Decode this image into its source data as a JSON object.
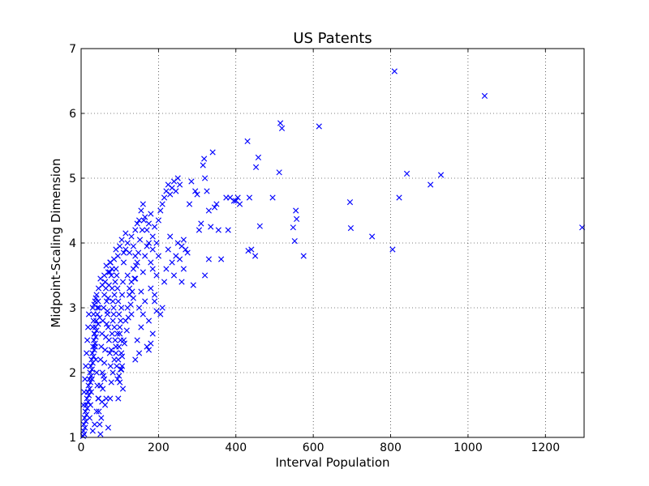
{
  "chart_data": {
    "type": "scatter",
    "title": "US Patents",
    "xlabel": "Interval Population",
    "ylabel": "Midpoint-Scaling Dimension",
    "xlim": [
      0,
      1300
    ],
    "ylim": [
      1,
      7
    ],
    "xticks": [
      "0",
      "200",
      "400",
      "600",
      "800",
      "1000",
      "1200"
    ],
    "yticks": [
      "1",
      "2",
      "3",
      "4",
      "5",
      "6",
      "7"
    ],
    "xtick_values": [
      0,
      200,
      400,
      600,
      800,
      1000,
      1200
    ],
    "ytick_values": [
      1,
      2,
      3,
      4,
      5,
      6,
      7
    ],
    "grid": true,
    "marker": "x",
    "series_color": "#0000ff",
    "points": [
      [
        5,
        1.02
      ],
      [
        6,
        1.1
      ],
      [
        7,
        1.2
      ],
      [
        8,
        1.05
      ],
      [
        9,
        1.3
      ],
      [
        10,
        1.15
      ],
      [
        11,
        1.4
      ],
      [
        12,
        1.25
      ],
      [
        13,
        1.5
      ],
      [
        14,
        1.35
      ],
      [
        15,
        1.6
      ],
      [
        16,
        1.45
      ],
      [
        17,
        1.7
      ],
      [
        18,
        1.55
      ],
      [
        19,
        1.8
      ],
      [
        20,
        1.65
      ],
      [
        21,
        1.9
      ],
      [
        22,
        1.75
      ],
      [
        23,
        2.0
      ],
      [
        24,
        1.85
      ],
      [
        25,
        2.1
      ],
      [
        26,
        1.95
      ],
      [
        27,
        2.2
      ],
      [
        28,
        2.05
      ],
      [
        29,
        2.3
      ],
      [
        30,
        2.15
      ],
      [
        31,
        2.4
      ],
      [
        32,
        2.25
      ],
      [
        33,
        2.5
      ],
      [
        34,
        2.35
      ],
      [
        35,
        2.6
      ],
      [
        36,
        2.45
      ],
      [
        37,
        2.7
      ],
      [
        38,
        2.55
      ],
      [
        39,
        2.8
      ],
      [
        40,
        2.65
      ],
      [
        42,
        2.9
      ],
      [
        44,
        2.75
      ],
      [
        46,
        3.0
      ],
      [
        48,
        2.85
      ],
      [
        6,
        1.5
      ],
      [
        8,
        1.7
      ],
      [
        10,
        1.9
      ],
      [
        12,
        2.1
      ],
      [
        14,
        2.3
      ],
      [
        16,
        2.5
      ],
      [
        18,
        2.7
      ],
      [
        20,
        2.9
      ],
      [
        22,
        1.3
      ],
      [
        24,
        1.5
      ],
      [
        26,
        1.7
      ],
      [
        28,
        1.9
      ],
      [
        30,
        2.7
      ],
      [
        32,
        2.9
      ],
      [
        34,
        3.05
      ],
      [
        36,
        3.1
      ],
      [
        38,
        3.15
      ],
      [
        40,
        3.2
      ],
      [
        42,
        3.0
      ],
      [
        44,
        3.1
      ],
      [
        30,
        1.1
      ],
      [
        35,
        1.2
      ],
      [
        40,
        1.4
      ],
      [
        45,
        1.6
      ],
      [
        50,
        1.8
      ],
      [
        55,
        2.0
      ],
      [
        60,
        1.9
      ],
      [
        65,
        1.6
      ],
      [
        70,
        1.15
      ],
      [
        62,
        1.5
      ],
      [
        50,
        2.2
      ],
      [
        52,
        2.4
      ],
      [
        54,
        2.6
      ],
      [
        56,
        2.8
      ],
      [
        58,
        3.0
      ],
      [
        60,
        3.2
      ],
      [
        62,
        3.4
      ],
      [
        64,
        3.3
      ],
      [
        66,
        3.1
      ],
      [
        68,
        2.9
      ],
      [
        70,
        2.7
      ],
      [
        72,
        2.5
      ],
      [
        74,
        2.3
      ],
      [
        76,
        2.1
      ],
      [
        78,
        2.35
      ],
      [
        80,
        2.6
      ],
      [
        82,
        2.8
      ],
      [
        84,
        3.0
      ],
      [
        86,
        3.2
      ],
      [
        88,
        3.4
      ],
      [
        90,
        3.6
      ],
      [
        92,
        3.5
      ],
      [
        94,
        3.3
      ],
      [
        96,
        3.1
      ],
      [
        98,
        2.9
      ],
      [
        100,
        2.7
      ],
      [
        102,
        2.5
      ],
      [
        104,
        2.3
      ],
      [
        106,
        2.1
      ],
      [
        108,
        1.75
      ],
      [
        96,
        1.6
      ],
      [
        100,
        1.85
      ],
      [
        104,
        2.05
      ],
      [
        110,
        2.5
      ],
      [
        115,
        2.8
      ],
      [
        120,
        3.0
      ],
      [
        125,
        3.2
      ],
      [
        130,
        3.4
      ],
      [
        135,
        3.6
      ],
      [
        140,
        3.8
      ],
      [
        110,
        3.7
      ],
      [
        115,
        3.9
      ],
      [
        120,
        4.0
      ],
      [
        125,
        3.85
      ],
      [
        130,
        4.1
      ],
      [
        135,
        3.95
      ],
      [
        140,
        4.2
      ],
      [
        145,
        4.3
      ],
      [
        150,
        4.35
      ],
      [
        155,
        4.5
      ],
      [
        160,
        4.6
      ],
      [
        165,
        4.4
      ],
      [
        170,
        4.2
      ],
      [
        175,
        4.3
      ],
      [
        180,
        4.45
      ],
      [
        185,
        4.1
      ],
      [
        190,
        4.25
      ],
      [
        195,
        4.0
      ],
      [
        200,
        4.35
      ],
      [
        205,
        4.5
      ],
      [
        140,
        2.2
      ],
      [
        145,
        2.5
      ],
      [
        150,
        2.3
      ],
      [
        155,
        2.7
      ],
      [
        160,
        2.9
      ],
      [
        165,
        3.1
      ],
      [
        170,
        2.4
      ],
      [
        175,
        2.35
      ],
      [
        180,
        2.45
      ],
      [
        185,
        2.6
      ],
      [
        175,
        2.8
      ],
      [
        180,
        3.3
      ],
      [
        185,
        3.6
      ],
      [
        190,
        3.2
      ],
      [
        195,
        3.5
      ],
      [
        200,
        3.8
      ],
      [
        205,
        2.9
      ],
      [
        210,
        3.0
      ],
      [
        215,
        3.4
      ],
      [
        220,
        3.6
      ],
      [
        210,
        4.6
      ],
      [
        215,
        4.7
      ],
      [
        220,
        4.8
      ],
      [
        225,
        4.9
      ],
      [
        230,
        4.75
      ],
      [
        235,
        4.85
      ],
      [
        240,
        4.95
      ],
      [
        245,
        4.8
      ],
      [
        250,
        5.0
      ],
      [
        255,
        4.9
      ],
      [
        225,
        3.9
      ],
      [
        230,
        4.1
      ],
      [
        235,
        3.7
      ],
      [
        240,
        3.5
      ],
      [
        245,
        3.8
      ],
      [
        250,
        4.0
      ],
      [
        255,
        3.75
      ],
      [
        260,
        3.95
      ],
      [
        265,
        4.05
      ],
      [
        270,
        3.9
      ],
      [
        260,
        3.4
      ],
      [
        265,
        3.6
      ],
      [
        275,
        3.85
      ],
      [
        280,
        4.6
      ],
      [
        285,
        4.95
      ],
      [
        290,
        3.35
      ],
      [
        295,
        4.8
      ],
      [
        300,
        4.75
      ],
      [
        305,
        4.2
      ],
      [
        310,
        4.3
      ],
      [
        315,
        5.2
      ],
      [
        318,
        5.3
      ],
      [
        320,
        5.0
      ],
      [
        325,
        4.8
      ],
      [
        330,
        4.5
      ],
      [
        335,
        4.25
      ],
      [
        340,
        5.4
      ],
      [
        345,
        4.55
      ],
      [
        350,
        4.6
      ],
      [
        355,
        4.2
      ],
      [
        320,
        3.5
      ],
      [
        330,
        3.75
      ],
      [
        362,
        3.75
      ],
      [
        375,
        4.7
      ],
      [
        380,
        4.2
      ],
      [
        385,
        4.7
      ],
      [
        395,
        4.65
      ],
      [
        400,
        4.65
      ],
      [
        405,
        4.7
      ],
      [
        410,
        4.6
      ],
      [
        430,
        5.57
      ],
      [
        432,
        3.88
      ],
      [
        435,
        4.7
      ],
      [
        440,
        3.9
      ],
      [
        450,
        3.8
      ],
      [
        452,
        5.17
      ],
      [
        458,
        5.32
      ],
      [
        462,
        4.26
      ],
      [
        495,
        4.7
      ],
      [
        512,
        5.09
      ],
      [
        515,
        5.85
      ],
      [
        519,
        5.77
      ],
      [
        548,
        4.24
      ],
      [
        552,
        4.03
      ],
      [
        555,
        4.5
      ],
      [
        557,
        4.37
      ],
      [
        575,
        3.8
      ],
      [
        615,
        5.8
      ],
      [
        695,
        4.63
      ],
      [
        697,
        4.23
      ],
      [
        752,
        4.1
      ],
      [
        805,
        3.9
      ],
      [
        810,
        6.65
      ],
      [
        822,
        4.7
      ],
      [
        842,
        5.07
      ],
      [
        903,
        4.9
      ],
      [
        930,
        5.05
      ],
      [
        1043,
        6.27
      ],
      [
        1295,
        4.24
      ],
      [
        45,
        3.3
      ],
      [
        50,
        3.45
      ],
      [
        55,
        3.35
      ],
      [
        60,
        3.5
      ],
      [
        65,
        3.65
      ],
      [
        70,
        3.55
      ],
      [
        75,
        3.7
      ],
      [
        80,
        3.6
      ],
      [
        85,
        3.75
      ],
      [
        90,
        3.9
      ],
      [
        95,
        3.8
      ],
      [
        100,
        3.95
      ],
      [
        105,
        4.05
      ],
      [
        110,
        3.85
      ],
      [
        115,
        4.15
      ],
      [
        120,
        3.5
      ],
      [
        125,
        3.3
      ],
      [
        130,
        2.9
      ],
      [
        135,
        3.15
      ],
      [
        140,
        3.45
      ],
      [
        145,
        3.7
      ],
      [
        150,
        3.0
      ],
      [
        155,
        3.25
      ],
      [
        160,
        3.55
      ],
      [
        165,
        3.8
      ],
      [
        170,
        3.95
      ],
      [
        175,
        4.0
      ],
      [
        180,
        3.7
      ],
      [
        185,
        3.9
      ],
      [
        190,
        3.1
      ],
      [
        195,
        2.95
      ],
      [
        30,
        3.0
      ],
      [
        32,
        2.8
      ],
      [
        34,
        2.6
      ],
      [
        36,
        2.4
      ],
      [
        38,
        2.2
      ],
      [
        40,
        2.0
      ],
      [
        42,
        1.8
      ],
      [
        44,
        1.6
      ],
      [
        46,
        1.4
      ],
      [
        48,
        1.2
      ],
      [
        50,
        1.05
      ],
      [
        52,
        1.3
      ],
      [
        54,
        1.55
      ],
      [
        56,
        1.75
      ],
      [
        58,
        1.95
      ],
      [
        60,
        2.15
      ],
      [
        62,
        2.35
      ],
      [
        64,
        2.55
      ],
      [
        66,
        2.75
      ],
      [
        68,
        2.95
      ],
      [
        70,
        3.15
      ],
      [
        72,
        3.35
      ],
      [
        74,
        3.55
      ],
      [
        76,
        3.7
      ],
      [
        78,
        3.5
      ],
      [
        80,
        3.3
      ],
      [
        82,
        3.1
      ],
      [
        84,
        2.9
      ],
      [
        86,
        2.7
      ],
      [
        88,
        2.5
      ],
      [
        90,
        2.3
      ],
      [
        92,
        2.1
      ],
      [
        94,
        1.9
      ],
      [
        96,
        2.2
      ],
      [
        98,
        2.4
      ],
      [
        100,
        2.6
      ],
      [
        102,
        2.8
      ],
      [
        104,
        3.0
      ],
      [
        106,
        3.2
      ],
      [
        108,
        3.4
      ],
      [
        75,
        1.6
      ],
      [
        78,
        1.85
      ],
      [
        82,
        2.0
      ],
      [
        86,
        2.2
      ],
      [
        90,
        2.4
      ],
      [
        94,
        2.6
      ],
      [
        98,
        1.95
      ],
      [
        102,
        2.05
      ],
      [
        106,
        2.25
      ],
      [
        112,
        2.45
      ],
      [
        118,
        2.65
      ],
      [
        122,
        2.85
      ],
      [
        128,
        3.05
      ],
      [
        132,
        3.25
      ],
      [
        138,
        3.45
      ],
      [
        142,
        3.65
      ],
      [
        148,
        3.85
      ],
      [
        152,
        4.05
      ],
      [
        158,
        4.2
      ],
      [
        162,
        4.35
      ]
    ]
  }
}
